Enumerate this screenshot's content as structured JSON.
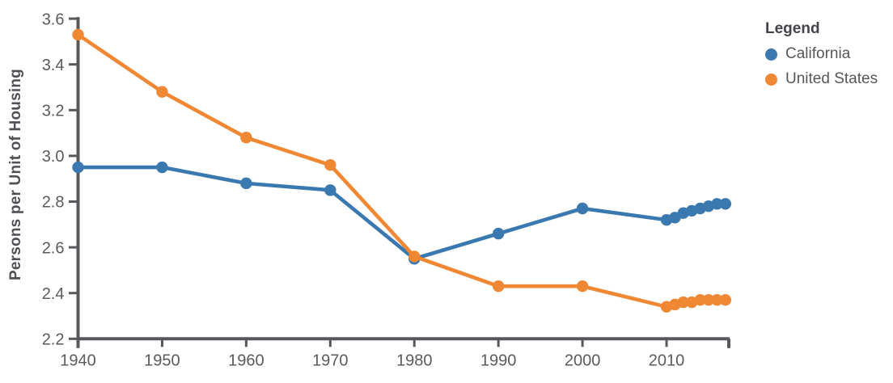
{
  "page": {
    "background": "#FFFFFF"
  },
  "colors": {
    "axis": "#56585c",
    "tick_text": "#595b5e",
    "ylabel_text": "#4e5054",
    "legend_title_text": "#43454a",
    "legend_item_text": "#55575b",
    "california": "#3A78B0",
    "united_states": "#EF8733"
  },
  "chart_data": {
    "type": "line",
    "title": "",
    "xlabel": "",
    "ylabel": "Persons per Unit of Housing",
    "x": [
      1940,
      1950,
      1960,
      1970,
      1980,
      1990,
      2000,
      2010,
      2011,
      2012,
      2013,
      2014,
      2015,
      2016,
      2017
    ],
    "series": [
      {
        "name": "California",
        "color": "#3A78B0",
        "values": [
          2.95,
          2.95,
          2.88,
          2.85,
          2.55,
          2.66,
          2.77,
          2.72,
          2.73,
          2.75,
          2.76,
          2.77,
          2.78,
          2.79,
          2.79
        ]
      },
      {
        "name": "United States",
        "color": "#EF8733",
        "values": [
          3.53,
          3.28,
          3.08,
          2.96,
          2.56,
          2.43,
          2.43,
          2.34,
          2.35,
          2.36,
          2.36,
          2.37,
          2.37,
          2.37,
          2.37
        ]
      }
    ],
    "xlim": [
      1940,
      2017.5
    ],
    "ylim": [
      2.2,
      3.6
    ],
    "x_ticks": [
      1940,
      1950,
      1960,
      1970,
      1980,
      1990,
      2000,
      2010
    ],
    "y_ticks": [
      2.2,
      2.4,
      2.6,
      2.8,
      3.0,
      3.2,
      3.4,
      3.6
    ],
    "grid": false,
    "marker": "circle",
    "legend": {
      "title": "Legend",
      "position": "top-right",
      "items": [
        "California",
        "United States"
      ]
    }
  }
}
